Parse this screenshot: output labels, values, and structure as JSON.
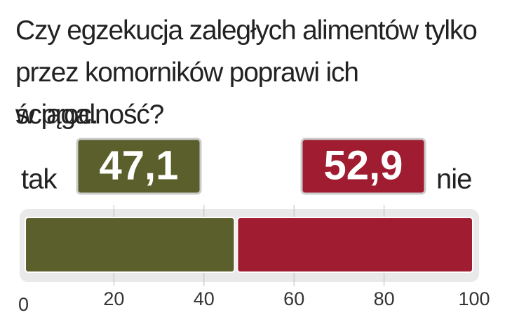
{
  "chart_data": {
    "type": "stacked-bar",
    "orientation": "horizontal",
    "title": "Czy egzekucja zaległych alimentów tylko przez komorników poprawi ich ściągalność?",
    "subtitle": "w proc.",
    "categories": [
      null
    ],
    "series": [
      {
        "name": "tak",
        "color": "#5b5f2b",
        "values": [
          47.1
        ],
        "value_labels": [
          "47,1"
        ]
      },
      {
        "name": "nie",
        "color": "#a01c30",
        "values": [
          52.9
        ],
        "value_labels": [
          "52,9"
        ]
      }
    ],
    "xlim": [
      0,
      100
    ],
    "xticks": [
      0,
      20,
      40,
      60,
      80,
      100
    ],
    "grid": true
  }
}
